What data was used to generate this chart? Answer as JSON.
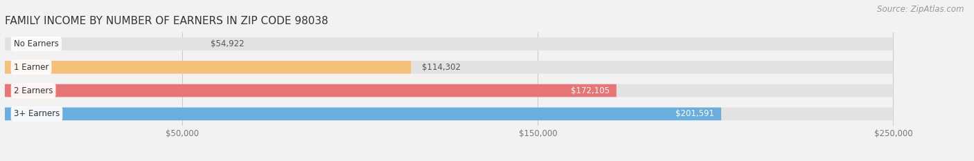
{
  "title": "FAMILY INCOME BY NUMBER OF EARNERS IN ZIP CODE 98038",
  "source": "Source: ZipAtlas.com",
  "categories": [
    "No Earners",
    "1 Earner",
    "2 Earners",
    "3+ Earners"
  ],
  "values": [
    54922,
    114302,
    172105,
    201591
  ],
  "bar_colors": [
    "#f4a0b5",
    "#f5c07a",
    "#e87575",
    "#6aaee0"
  ],
  "value_labels": [
    "$54,922",
    "$114,302",
    "$172,105",
    "$201,591"
  ],
  "value_inside": [
    false,
    false,
    true,
    true
  ],
  "xlim_max": 270000,
  "data_max": 250000,
  "xticks": [
    50000,
    150000,
    250000
  ],
  "xtick_labels": [
    "$50,000",
    "$150,000",
    "$250,000"
  ],
  "background_color": "#f2f2f2",
  "bar_bg_color": "#e2e2e2",
  "title_fontsize": 11,
  "source_fontsize": 8.5,
  "bar_height": 0.55,
  "bar_gap": 0.15
}
